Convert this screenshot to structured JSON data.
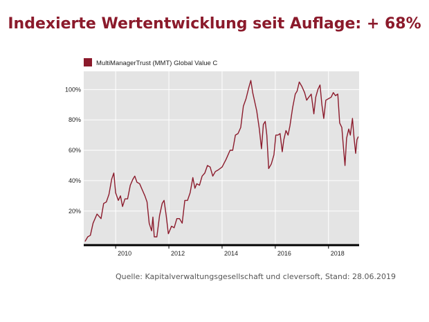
{
  "headline": "Indexierte Wertentwicklung seit Auflage: + 68%",
  "source": "Quelle: Kapitalverwaltungsgesellschaft und cleversoft, Stand: 28.06.2019",
  "colors": {
    "line": "#8b1a2b",
    "plot_bg": "#e4e4e4",
    "headline": "#8b1a2b"
  },
  "chart_data": {
    "type": "line",
    "legend": {
      "placement": "top-left"
    },
    "grid": true,
    "x_ticks": [
      {
        "value": 2010.4,
        "label": "2010"
      },
      {
        "value": 2012.4,
        "label": "2012"
      },
      {
        "value": 2014.4,
        "label": "2014"
      },
      {
        "value": 2016.4,
        "label": "2016"
      },
      {
        "value": 2018.4,
        "label": "2018"
      }
    ],
    "y_ticks": [
      {
        "value": 20,
        "label": "20%"
      },
      {
        "value": 40,
        "label": "40%"
      },
      {
        "value": 60,
        "label": "60%"
      },
      {
        "value": 80,
        "label": "80%"
      },
      {
        "value": 100,
        "label": "100%"
      }
    ],
    "xlim": [
      2009.2,
      2019.55
    ],
    "ylim": [
      -2,
      112
    ],
    "series": [
      {
        "name": "MultiManagerTrust (MMT) Global Value C",
        "points": [
          [
            2009.25,
            0
          ],
          [
            2009.35,
            3
          ],
          [
            2009.45,
            4
          ],
          [
            2009.55,
            12
          ],
          [
            2009.7,
            18
          ],
          [
            2009.85,
            15
          ],
          [
            2009.95,
            25
          ],
          [
            2010.05,
            26
          ],
          [
            2010.15,
            31
          ],
          [
            2010.25,
            41
          ],
          [
            2010.33,
            45
          ],
          [
            2010.4,
            32
          ],
          [
            2010.5,
            27
          ],
          [
            2010.58,
            30
          ],
          [
            2010.66,
            23
          ],
          [
            2010.75,
            28
          ],
          [
            2010.85,
            28
          ],
          [
            2010.95,
            37
          ],
          [
            2011.05,
            41
          ],
          [
            2011.12,
            43
          ],
          [
            2011.2,
            39
          ],
          [
            2011.3,
            38
          ],
          [
            2011.4,
            34
          ],
          [
            2011.5,
            30
          ],
          [
            2011.58,
            26
          ],
          [
            2011.66,
            12
          ],
          [
            2011.75,
            7
          ],
          [
            2011.8,
            16
          ],
          [
            2011.85,
            3
          ],
          [
            2011.95,
            3
          ],
          [
            2012.05,
            17
          ],
          [
            2012.15,
            25
          ],
          [
            2012.22,
            27
          ],
          [
            2012.3,
            17
          ],
          [
            2012.38,
            5
          ],
          [
            2012.5,
            10
          ],
          [
            2012.6,
            9
          ],
          [
            2012.7,
            15
          ],
          [
            2012.8,
            15
          ],
          [
            2012.9,
            12
          ],
          [
            2013.0,
            27
          ],
          [
            2013.1,
            27
          ],
          [
            2013.2,
            32
          ],
          [
            2013.3,
            42
          ],
          [
            2013.38,
            35
          ],
          [
            2013.45,
            38
          ],
          [
            2013.55,
            37
          ],
          [
            2013.65,
            43
          ],
          [
            2013.75,
            45
          ],
          [
            2013.85,
            50
          ],
          [
            2013.95,
            49
          ],
          [
            2014.05,
            43
          ],
          [
            2014.15,
            46
          ],
          [
            2014.25,
            47
          ],
          [
            2014.4,
            49
          ],
          [
            2014.55,
            54
          ],
          [
            2014.7,
            60
          ],
          [
            2014.8,
            60
          ],
          [
            2014.9,
            70
          ],
          [
            2015.0,
            71
          ],
          [
            2015.1,
            75
          ],
          [
            2015.2,
            89
          ],
          [
            2015.3,
            94
          ],
          [
            2015.4,
            101
          ],
          [
            2015.48,
            106
          ],
          [
            2015.55,
            98
          ],
          [
            2015.7,
            86
          ],
          [
            2015.8,
            74
          ],
          [
            2015.88,
            61
          ],
          [
            2015.95,
            77
          ],
          [
            2016.02,
            79
          ],
          [
            2016.08,
            70
          ],
          [
            2016.15,
            48
          ],
          [
            2016.25,
            51
          ],
          [
            2016.35,
            57
          ],
          [
            2016.42,
            70
          ],
          [
            2016.5,
            70
          ],
          [
            2016.58,
            71
          ],
          [
            2016.66,
            59
          ],
          [
            2016.72,
            67
          ],
          [
            2016.8,
            73
          ],
          [
            2016.88,
            70
          ],
          [
            2016.95,
            76
          ],
          [
            2017.05,
            88
          ],
          [
            2017.15,
            97
          ],
          [
            2017.22,
            99
          ],
          [
            2017.3,
            105
          ],
          [
            2017.4,
            102
          ],
          [
            2017.5,
            98
          ],
          [
            2017.58,
            93
          ],
          [
            2017.66,
            95
          ],
          [
            2017.75,
            97
          ],
          [
            2017.85,
            84
          ],
          [
            2017.92,
            95
          ],
          [
            2018.0,
            100
          ],
          [
            2018.08,
            103
          ],
          [
            2018.15,
            90
          ],
          [
            2018.22,
            81
          ],
          [
            2018.3,
            93
          ],
          [
            2018.4,
            94
          ],
          [
            2018.5,
            95
          ],
          [
            2018.58,
            98
          ],
          [
            2018.66,
            96
          ],
          [
            2018.75,
            97
          ],
          [
            2018.82,
            78
          ],
          [
            2018.9,
            75
          ],
          [
            2018.97,
            60
          ],
          [
            2019.02,
            50
          ],
          [
            2019.08,
            68
          ],
          [
            2019.16,
            74
          ],
          [
            2019.22,
            70
          ],
          [
            2019.3,
            81
          ],
          [
            2019.36,
            68
          ],
          [
            2019.42,
            58
          ],
          [
            2019.47,
            67
          ],
          [
            2019.52,
            69
          ]
        ]
      }
    ]
  }
}
